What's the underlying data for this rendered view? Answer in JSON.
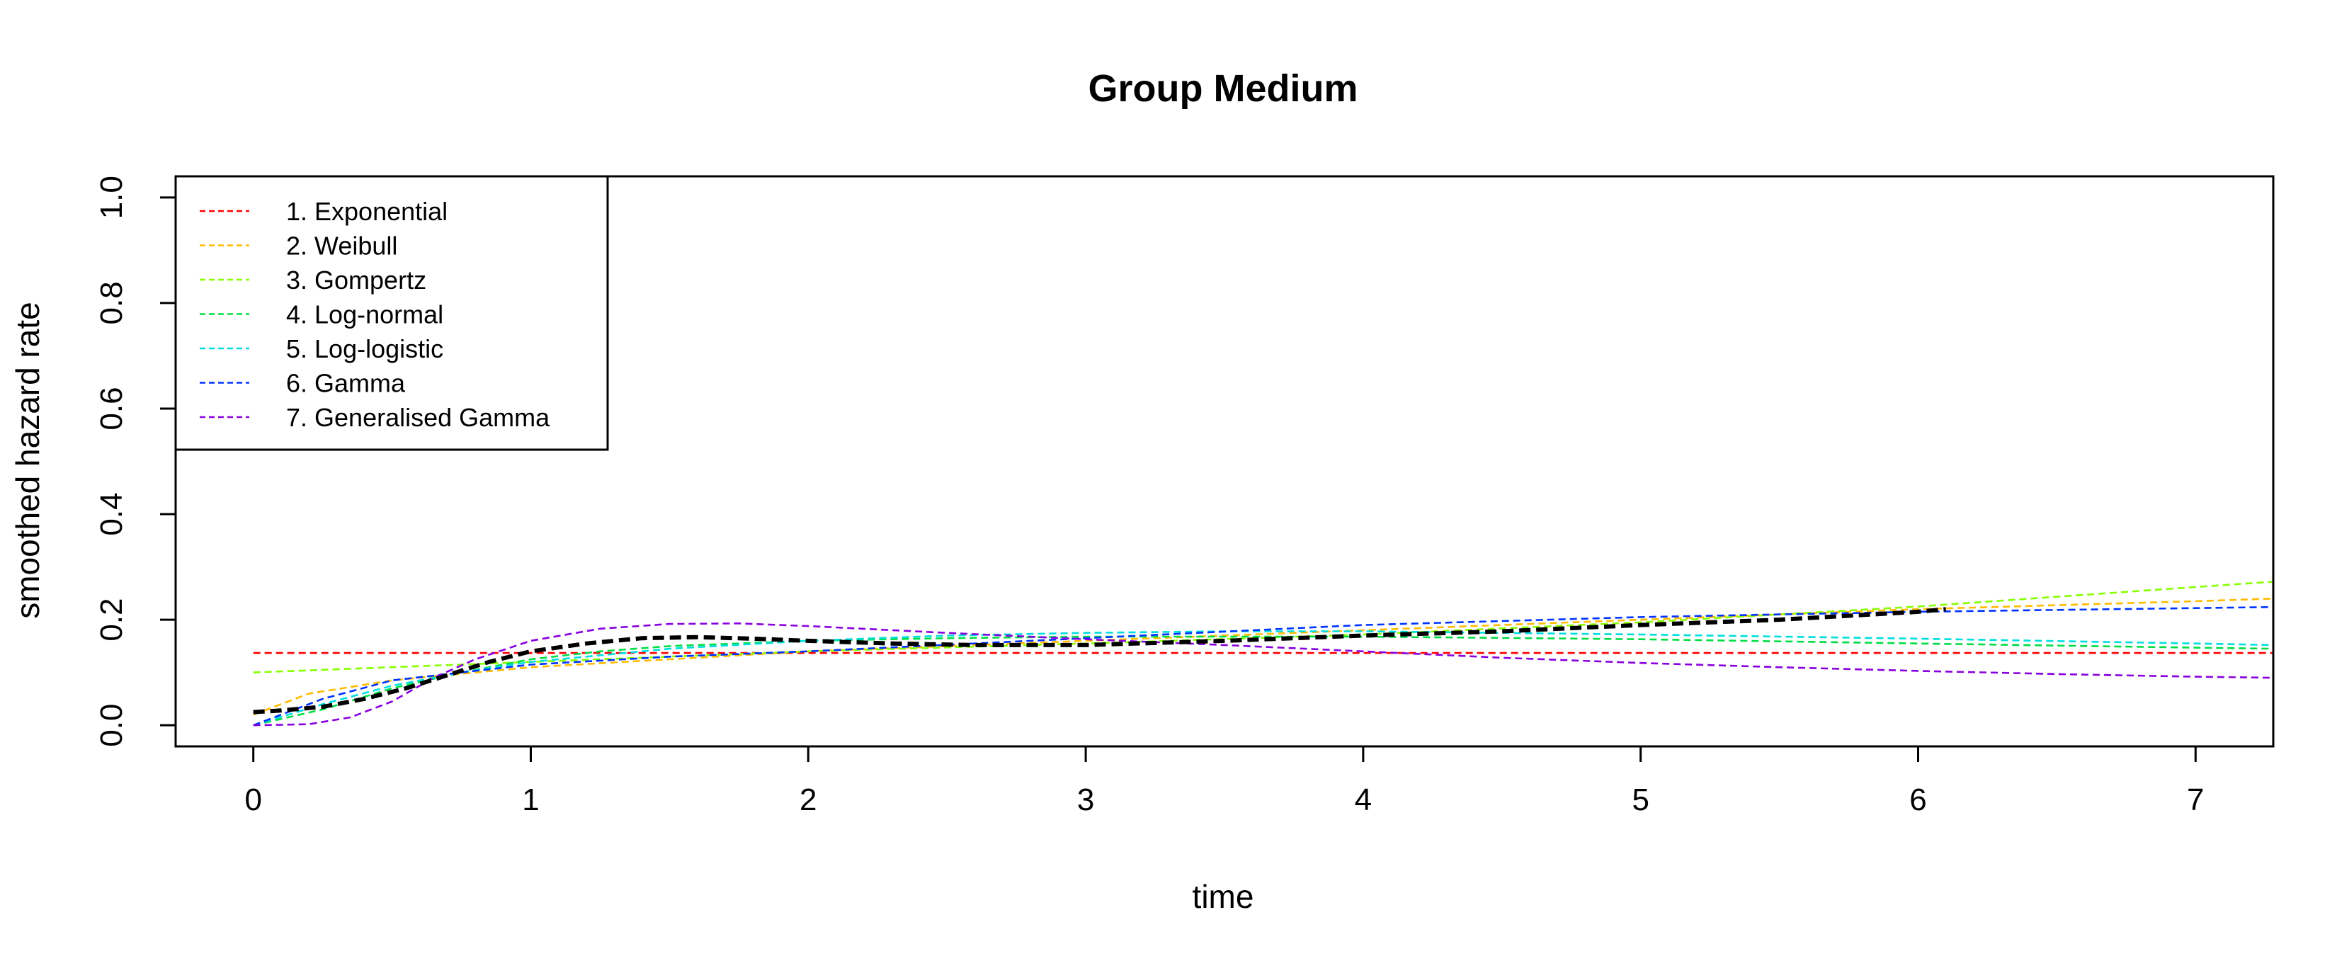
{
  "chart_data": {
    "type": "line",
    "title": "Group Medium",
    "xlabel": "time",
    "ylabel": "smoothed hazard rate",
    "xlim": [
      -0.28,
      7.28
    ],
    "ylim": [
      -0.04,
      1.04
    ],
    "x_ticks": [
      0,
      1,
      2,
      3,
      4,
      5,
      6,
      7
    ],
    "y_ticks": [
      0.0,
      0.2,
      0.4,
      0.6,
      0.8,
      1.0
    ],
    "x_tick_labels": [
      "0",
      "1",
      "2",
      "3",
      "4",
      "5",
      "6",
      "7"
    ],
    "y_tick_labels": [
      "0.0",
      "0.2",
      "0.4",
      "0.6",
      "0.8",
      "1.0"
    ],
    "grid": false,
    "legend_position": "top-left",
    "series": [
      {
        "name": "1. Exponential",
        "color": "#FF0000",
        "dash": "dashed",
        "x": [
          0,
          7.28
        ],
        "y": [
          0.137,
          0.137
        ]
      },
      {
        "name": "2. Weibull",
        "color": "#FFBB00",
        "dash": "dashed",
        "x": [
          0,
          0.2,
          0.5,
          1.0,
          1.5,
          2,
          3,
          4,
          5,
          6,
          7,
          7.28
        ],
        "y": [
          0.02,
          0.06,
          0.085,
          0.11,
          0.125,
          0.14,
          0.16,
          0.18,
          0.2,
          0.22,
          0.235,
          0.24
        ]
      },
      {
        "name": "3. Gompertz",
        "color": "#88FF00",
        "dash": "dashed",
        "x": [
          0,
          1,
          2,
          3,
          4,
          5,
          6,
          7,
          7.28
        ],
        "y": [
          0.1,
          0.12,
          0.14,
          0.155,
          0.172,
          0.195,
          0.225,
          0.262,
          0.272
        ]
      },
      {
        "name": "4. Log-normal",
        "color": "#00DD44",
        "dash": "dashed",
        "x": [
          0,
          0.25,
          0.5,
          0.75,
          1.0,
          1.25,
          1.5,
          2,
          2.5,
          3,
          4,
          5,
          6,
          7,
          7.28
        ],
        "y": [
          0.0,
          0.03,
          0.07,
          0.1,
          0.125,
          0.14,
          0.15,
          0.16,
          0.165,
          0.168,
          0.168,
          0.163,
          0.155,
          0.147,
          0.145
        ]
      },
      {
        "name": "5. Log-logistic",
        "color": "#00DDDD",
        "dash": "dashed",
        "x": [
          0,
          0.25,
          0.5,
          0.75,
          1.0,
          1.5,
          2,
          2.5,
          3,
          3.5,
          4,
          5,
          6,
          7,
          7.28
        ],
        "y": [
          0.0,
          0.04,
          0.075,
          0.1,
          0.12,
          0.145,
          0.16,
          0.17,
          0.175,
          0.178,
          0.178,
          0.172,
          0.164,
          0.155,
          0.152
        ]
      },
      {
        "name": "6. Gamma",
        "color": "#0033FF",
        "dash": "dashed",
        "x": [
          0,
          0.25,
          0.5,
          0.75,
          1.0,
          1.5,
          2,
          3,
          4,
          5,
          6,
          7,
          7.28
        ],
        "y": [
          0.0,
          0.05,
          0.085,
          0.1,
          0.115,
          0.13,
          0.14,
          0.165,
          0.19,
          0.205,
          0.215,
          0.222,
          0.224
        ]
      },
      {
        "name": "7. Generalised Gamma",
        "color": "#8800DD",
        "dash": "dashed",
        "x": [
          0,
          0.2,
          0.35,
          0.5,
          0.65,
          0.8,
          1.0,
          1.25,
          1.5,
          1.75,
          2,
          2.5,
          3,
          3.5,
          4,
          4.5,
          5,
          5.5,
          6,
          6.5,
          7,
          7.28
        ],
        "y": [
          0.0,
          0.002,
          0.015,
          0.045,
          0.09,
          0.125,
          0.16,
          0.183,
          0.192,
          0.193,
          0.188,
          0.175,
          0.163,
          0.152,
          0.14,
          0.128,
          0.118,
          0.11,
          0.103,
          0.097,
          0.092,
          0.09
        ]
      },
      {
        "name": "",
        "color": "#000000",
        "dash": "bold-dashed",
        "x": [
          0,
          0.1,
          0.25,
          0.4,
          0.55,
          0.7,
          0.85,
          1.0,
          1.2,
          1.4,
          1.6,
          1.8,
          2.0,
          2.3,
          2.6,
          3.0,
          3.5,
          4.0,
          4.5,
          5.0,
          5.5,
          6.0,
          6.1
        ],
        "y": [
          0.025,
          0.028,
          0.035,
          0.05,
          0.07,
          0.095,
          0.12,
          0.14,
          0.155,
          0.165,
          0.167,
          0.164,
          0.16,
          0.155,
          0.152,
          0.152,
          0.16,
          0.17,
          0.178,
          0.19,
          0.2,
          0.215,
          0.22
        ]
      }
    ]
  }
}
